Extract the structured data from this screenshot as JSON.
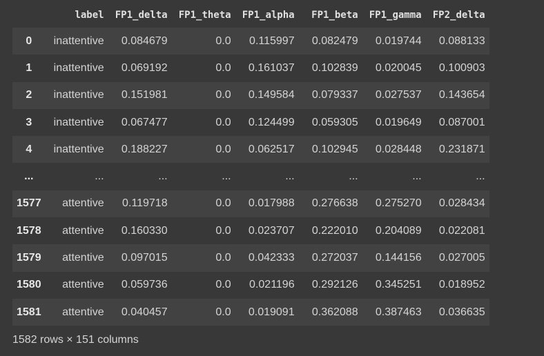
{
  "table": {
    "columns": [
      "label",
      "FP1_delta",
      "FP1_theta",
      "FP1_alpha",
      "FP1_beta",
      "FP1_gamma",
      "FP2_delta"
    ],
    "rows": [
      {
        "index": "0",
        "cells": [
          "inattentive",
          "0.084679",
          "0.0",
          "0.115997",
          "0.082479",
          "0.019744",
          "0.088133"
        ]
      },
      {
        "index": "1",
        "cells": [
          "inattentive",
          "0.069192",
          "0.0",
          "0.161037",
          "0.102839",
          "0.020045",
          "0.100903"
        ]
      },
      {
        "index": "2",
        "cells": [
          "inattentive",
          "0.151981",
          "0.0",
          "0.149584",
          "0.079337",
          "0.027537",
          "0.143654"
        ]
      },
      {
        "index": "3",
        "cells": [
          "inattentive",
          "0.067477",
          "0.0",
          "0.124499",
          "0.059305",
          "0.019649",
          "0.087001"
        ]
      },
      {
        "index": "4",
        "cells": [
          "inattentive",
          "0.188227",
          "0.0",
          "0.062517",
          "0.102945",
          "0.028448",
          "0.231871"
        ]
      },
      {
        "index": "...",
        "cells": [
          "...",
          "...",
          "...",
          "...",
          "...",
          "...",
          "..."
        ]
      },
      {
        "index": "1577",
        "cells": [
          "attentive",
          "0.119718",
          "0.0",
          "0.017988",
          "0.276638",
          "0.275270",
          "0.028434"
        ]
      },
      {
        "index": "1578",
        "cells": [
          "attentive",
          "0.160330",
          "0.0",
          "0.023707",
          "0.222010",
          "0.204089",
          "0.022081"
        ]
      },
      {
        "index": "1579",
        "cells": [
          "attentive",
          "0.097015",
          "0.0",
          "0.042333",
          "0.272037",
          "0.144156",
          "0.027005"
        ]
      },
      {
        "index": "1580",
        "cells": [
          "attentive",
          "0.059736",
          "0.0",
          "0.021196",
          "0.292126",
          "0.345251",
          "0.018952"
        ]
      },
      {
        "index": "1581",
        "cells": [
          "attentive",
          "0.040457",
          "0.0",
          "0.019091",
          "0.362088",
          "0.387463",
          "0.036635"
        ]
      }
    ]
  },
  "footer": {
    "summary": "1582 rows × 151 columns"
  }
}
